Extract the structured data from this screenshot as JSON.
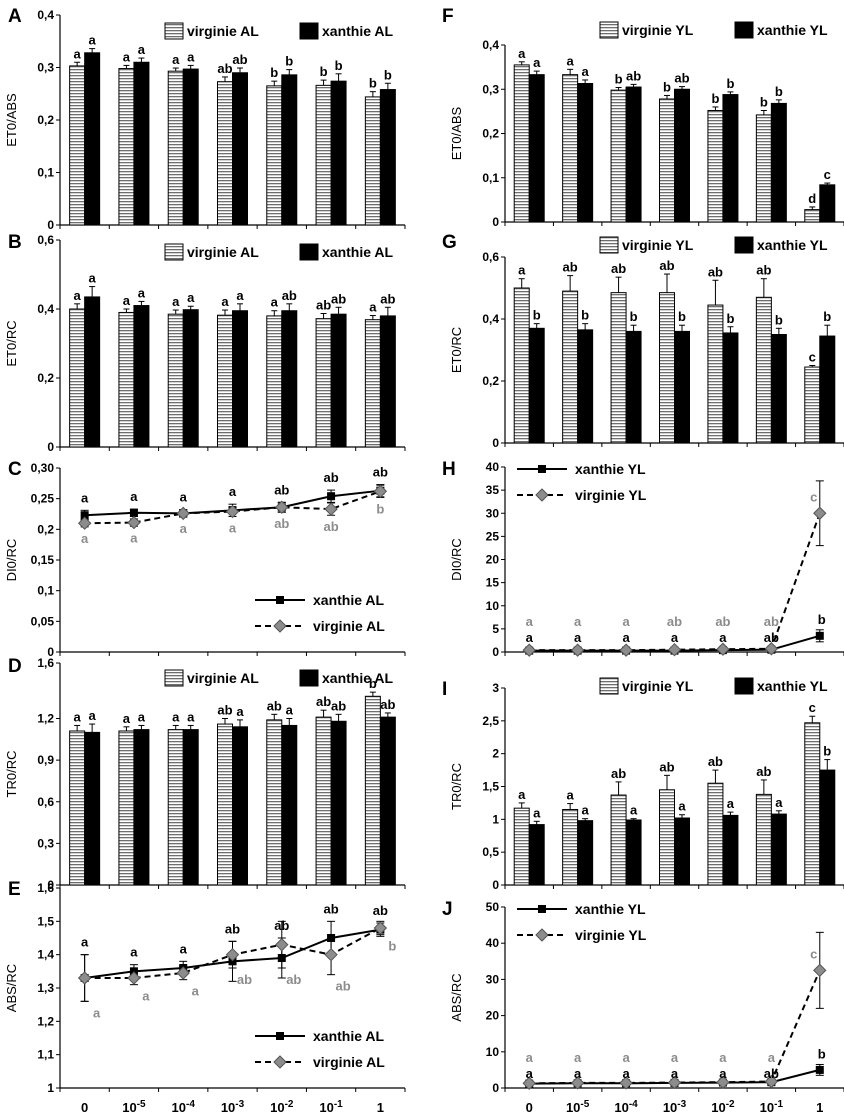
{
  "x_tick_labels": [
    {
      "base": "0",
      "exp": ""
    },
    {
      "base": "10",
      "exp": "-5"
    },
    {
      "base": "10",
      "exp": "-4"
    },
    {
      "base": "10",
      "exp": "-3"
    },
    {
      "base": "10",
      "exp": "-2"
    },
    {
      "base": "10",
      "exp": "-1"
    },
    {
      "base": "1",
      "exp": ""
    }
  ],
  "colors": {
    "virginie_hatch": "#6e6e6e",
    "xanthie": "#000000",
    "grey_labels": "#8c8c8c",
    "virginie_line": "#8c8c8c"
  },
  "chart_data": [
    {
      "panel": "A",
      "type": "bar",
      "ylabel": "ET0/ABS",
      "ylim": [
        0,
        0.4
      ],
      "yticks": [
        "0",
        "0,1",
        "0,2",
        "0,3",
        "0,4"
      ],
      "legend_position": "top",
      "series": [
        {
          "name": "virginie AL",
          "fill": "hatch",
          "values": [
            0.303,
            0.298,
            0.293,
            0.273,
            0.265,
            0.266,
            0.244
          ],
          "errors": [
            0.007,
            0.006,
            0.006,
            0.009,
            0.009,
            0.01,
            0.01
          ],
          "letters": [
            "a",
            "a",
            "a",
            "ab",
            "b",
            "b",
            "b"
          ]
        },
        {
          "name": "xanthie AL",
          "fill": "solid",
          "values": [
            0.328,
            0.31,
            0.297,
            0.29,
            0.286,
            0.274,
            0.258
          ],
          "errors": [
            0.008,
            0.008,
            0.007,
            0.009,
            0.01,
            0.014,
            0.012
          ],
          "letters": [
            "a",
            "a",
            "a",
            "ab",
            "b",
            "b",
            "b"
          ]
        }
      ]
    },
    {
      "panel": "B",
      "type": "bar",
      "ylabel": "ET0/RC",
      "ylim": [
        0,
        0.6
      ],
      "yticks": [
        "0",
        "0,2",
        "0,4",
        "0,6"
      ],
      "legend_position": "top",
      "series": [
        {
          "name": "virginie AL",
          "fill": "hatch",
          "values": [
            0.4,
            0.39,
            0.385,
            0.382,
            0.38,
            0.372,
            0.369
          ],
          "errors": [
            0.015,
            0.01,
            0.012,
            0.015,
            0.015,
            0.015,
            0.012
          ],
          "letters": [
            "a",
            "a",
            "a",
            "a",
            "a",
            "ab",
            "a"
          ]
        },
        {
          "name": "xanthie AL",
          "fill": "solid",
          "values": [
            0.435,
            0.41,
            0.398,
            0.395,
            0.395,
            0.385,
            0.38
          ],
          "errors": [
            0.03,
            0.012,
            0.01,
            0.02,
            0.02,
            0.02,
            0.025
          ],
          "letters": [
            "a",
            "a",
            "a",
            "a",
            "ab",
            "ab",
            "ab"
          ]
        }
      ]
    },
    {
      "panel": "C",
      "type": "line",
      "ylabel": "DI0/RC",
      "ylim": [
        0,
        0.3
      ],
      "yticks": [
        "0",
        "0,05",
        "0,1",
        "0,15",
        "0,2",
        "0,25",
        "0,30"
      ],
      "legend_position": "bottom-right",
      "series": [
        {
          "name": "xanthie AL",
          "style": "solid-square",
          "values": [
            0.223,
            0.227,
            0.226,
            0.231,
            0.236,
            0.254,
            0.263
          ],
          "errors": [
            0.008,
            0.006,
            0.006,
            0.01,
            0.008,
            0.01,
            0.01
          ],
          "letters": [
            "a",
            "a",
            "a",
            "a",
            "ab",
            "ab",
            "ab"
          ]
        },
        {
          "name": "virginie AL",
          "style": "dashed-diamond",
          "values": [
            0.21,
            0.211,
            0.226,
            0.229,
            0.236,
            0.233,
            0.262
          ],
          "errors": [
            0.006,
            0.006,
            0.006,
            0.008,
            0.008,
            0.01,
            0.01
          ],
          "letters": [
            "a",
            "a",
            "a",
            "a",
            "ab",
            "ab",
            "b"
          ]
        }
      ]
    },
    {
      "panel": "D",
      "type": "bar",
      "ylabel": "TR0/RC",
      "ylim": [
        0,
        1.6
      ],
      "yticks": [
        "0",
        "0,3",
        "0,6",
        "0,9",
        "1,2",
        "1,6"
      ],
      "legend_position": "top",
      "series": [
        {
          "name": "virginie AL",
          "fill": "hatch",
          "values": [
            1.11,
            1.11,
            1.12,
            1.16,
            1.19,
            1.21,
            1.36
          ],
          "errors": [
            0.04,
            0.03,
            0.03,
            0.04,
            0.04,
            0.05,
            0.03
          ],
          "letters": [
            "a",
            "a",
            "a",
            "ab",
            "ab",
            "ab",
            "b"
          ]
        },
        {
          "name": "xanthie AL",
          "fill": "solid",
          "values": [
            1.1,
            1.12,
            1.12,
            1.14,
            1.15,
            1.18,
            1.21
          ],
          "errors": [
            0.06,
            0.03,
            0.03,
            0.05,
            0.05,
            0.05,
            0.03
          ],
          "letters": [
            "a",
            "a",
            "a",
            "a",
            "a",
            "ab",
            "ab"
          ]
        }
      ]
    },
    {
      "panel": "E",
      "type": "line",
      "ylabel": "ABS/RC",
      "ylim": [
        1,
        1.6
      ],
      "yticks": [
        "1",
        "1,1",
        "1,2",
        "1,3",
        "1,4",
        "1,5",
        "1,6"
      ],
      "legend_position": "bottom-right",
      "series": [
        {
          "name": "xanthie AL",
          "style": "solid-square",
          "values": [
            1.33,
            1.35,
            1.36,
            1.38,
            1.39,
            1.45,
            1.475
          ],
          "errors": [
            0.07,
            0.02,
            0.02,
            0.06,
            0.06,
            0.05,
            0.02
          ],
          "letters": [
            "a",
            "a",
            "a",
            "ab",
            "ab",
            "ab",
            "ab"
          ]
        },
        {
          "name": "virginie AL",
          "style": "dashed-diamond",
          "values": [
            1.33,
            1.33,
            1.345,
            1.4,
            1.43,
            1.4,
            1.48
          ],
          "errors": [
            0.07,
            0.02,
            0.02,
            0.04,
            0.07,
            0.06,
            0.02
          ],
          "letters": [
            "a",
            "a",
            "a",
            "ab",
            "ab",
            "ab",
            "b"
          ]
        }
      ]
    },
    {
      "panel": "F",
      "type": "bar",
      "ylabel": "ET0/ABS",
      "ylim": [
        0,
        0.4
      ],
      "yticks": [
        "0",
        "0,1",
        "0,2",
        "0,3",
        "0,4"
      ],
      "legend_position": "top",
      "series": [
        {
          "name": "virginie YL",
          "fill": "hatch",
          "values": [
            0.355,
            0.333,
            0.298,
            0.278,
            0.252,
            0.242,
            0.028
          ],
          "errors": [
            0.007,
            0.012,
            0.006,
            0.008,
            0.008,
            0.01,
            0.006
          ],
          "letters": [
            "a",
            "a",
            "b",
            "b",
            "b",
            "b",
            "d"
          ]
        },
        {
          "name": "xanthie YL",
          "fill": "solid",
          "values": [
            0.333,
            0.313,
            0.305,
            0.3,
            0.288,
            0.268,
            0.084
          ],
          "errors": [
            0.008,
            0.008,
            0.006,
            0.006,
            0.006,
            0.008,
            0.004
          ],
          "letters": [
            "a",
            "a",
            "ab",
            "ab",
            "b",
            "b",
            "c"
          ]
        }
      ]
    },
    {
      "panel": "G",
      "type": "bar",
      "ylabel": "ET0/RC",
      "ylim": [
        0,
        0.6
      ],
      "yticks": [
        "0",
        "0,2",
        "0,4",
        "0,6"
      ],
      "legend_position": "top",
      "series": [
        {
          "name": "virginie YL",
          "fill": "hatch",
          "values": [
            0.5,
            0.49,
            0.485,
            0.485,
            0.445,
            0.47,
            0.245
          ],
          "errors": [
            0.03,
            0.05,
            0.05,
            0.06,
            0.08,
            0.06,
            0.005
          ],
          "letters": [
            "a",
            "ab",
            "ab",
            "ab",
            "ab",
            "ab",
            "c"
          ]
        },
        {
          "name": "xanthie YL",
          "fill": "solid",
          "values": [
            0.37,
            0.365,
            0.36,
            0.36,
            0.355,
            0.35,
            0.345
          ],
          "errors": [
            0.015,
            0.02,
            0.02,
            0.02,
            0.02,
            0.02,
            0.035
          ],
          "letters": [
            "b",
            "b",
            "b",
            "b",
            "b",
            "b",
            "b"
          ]
        }
      ]
    },
    {
      "panel": "H",
      "type": "line",
      "ylabel": "DI0/RC",
      "ylim": [
        0,
        40
      ],
      "yticks": [
        "0",
        "5",
        "10",
        "15",
        "20",
        "25",
        "30",
        "35",
        "40"
      ],
      "legend_position": "top-left",
      "series": [
        {
          "name": "xanthie YL",
          "style": "solid-square",
          "values": [
            0.3,
            0.3,
            0.3,
            0.3,
            0.4,
            0.5,
            3.5
          ],
          "errors": [
            0.2,
            0.2,
            0.2,
            0.2,
            0.2,
            0.3,
            1.3
          ],
          "letters": [
            "a",
            "a",
            "a",
            "a",
            "a",
            "ab",
            "b"
          ]
        },
        {
          "name": "virginie YL",
          "style": "dashed-diamond",
          "values": [
            0.4,
            0.4,
            0.4,
            0.5,
            0.6,
            0.7,
            30
          ],
          "errors": [
            0.2,
            0.2,
            0.2,
            0.2,
            0.2,
            0.3,
            7
          ]
        }
      ],
      "grey_letters": [
        "a",
        "a",
        "a",
        "ab",
        "ab",
        "ab",
        "c"
      ]
    },
    {
      "panel": "I",
      "type": "bar",
      "ylabel": "TR0/RC",
      "ylim": [
        0,
        3
      ],
      "yticks": [
        "0",
        "0,5",
        "1",
        "1,5",
        "2",
        "2,5",
        "3"
      ],
      "legend_position": "top",
      "series": [
        {
          "name": "virginie YL",
          "fill": "hatch",
          "values": [
            1.17,
            1.15,
            1.37,
            1.45,
            1.55,
            1.38,
            2.47
          ],
          "errors": [
            0.08,
            0.09,
            0.2,
            0.22,
            0.2,
            0.22,
            0.1
          ],
          "letters": [
            "a",
            "a",
            "ab",
            "ab",
            "ab",
            "ab",
            "c"
          ]
        },
        {
          "name": "xanthie YL",
          "fill": "solid",
          "values": [
            0.92,
            0.98,
            0.99,
            1.02,
            1.06,
            1.08,
            1.75
          ],
          "errors": [
            0.05,
            0.03,
            0.02,
            0.05,
            0.05,
            0.05,
            0.16
          ],
          "letters": [
            "a",
            "a",
            "a",
            "a",
            "a",
            "a",
            "b"
          ]
        }
      ]
    },
    {
      "panel": "J",
      "type": "line",
      "ylabel": "ABS/RC",
      "ylim": [
        0,
        50
      ],
      "yticks": [
        "0",
        "10",
        "20",
        "30",
        "40",
        "50"
      ],
      "legend_position": "top-left",
      "series": [
        {
          "name": "xanthie YL",
          "style": "solid-square",
          "values": [
            1.2,
            1.3,
            1.3,
            1.4,
            1.5,
            1.6,
            5
          ],
          "errors": [
            0.5,
            0.5,
            0.5,
            0.5,
            0.5,
            0.6,
            1.5
          ],
          "letters": [
            "a",
            "a",
            "a",
            "a",
            "a",
            "ab",
            "b"
          ]
        },
        {
          "name": "virginie YL",
          "style": "dashed-diamond",
          "values": [
            1.3,
            1.4,
            1.4,
            1.5,
            1.6,
            1.8,
            32.5
          ],
          "errors": [
            0.5,
            0.5,
            0.5,
            0.5,
            0.5,
            0.6,
            10.5
          ]
        }
      ],
      "grey_letters": [
        "a",
        "a",
        "a",
        "a",
        "a",
        "a",
        "c"
      ]
    }
  ]
}
